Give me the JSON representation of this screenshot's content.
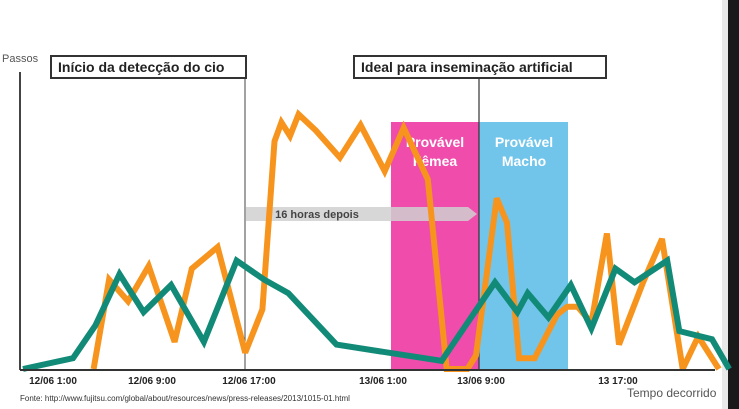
{
  "chart_data": {
    "type": "line",
    "ylabel": "Passos",
    "xlabel": "Tempo decorrido",
    "x_ticks": [
      "12/06 1:00",
      "12/06 9:00",
      "12/06 17:00",
      "13/06 1:00",
      "13/06 9:00",
      "13 17:00"
    ],
    "xlim": [
      0,
      40
    ],
    "ylim": [
      0,
      100
    ],
    "grid": false,
    "legend": "none",
    "series": [
      {
        "color": "#f7941d",
        "x": [
          4.1,
          5.0,
          6.1,
          7.3,
          8.8,
          9.8,
          11.3,
          12.9,
          13.9,
          14.6,
          15.0,
          15.5,
          16.0,
          17.0,
          18.4,
          19.6,
          21.0,
          22.1,
          23.5,
          24.6,
          25.8,
          26.3,
          27.5,
          28.1,
          28.8,
          29.7,
          31.0,
          31.6,
          32.2,
          33.0,
          33.9,
          34.6,
          36.0,
          37.1,
          38.3,
          39.2,
          40.4
        ],
        "y": [
          0,
          33,
          25,
          38,
          10,
          37,
          45,
          6,
          22,
          84,
          91,
          86,
          94,
          88,
          78,
          90,
          73,
          89,
          70,
          0,
          0,
          5,
          63,
          54,
          4,
          4,
          20,
          23,
          23,
          17,
          50,
          9,
          32,
          48,
          0,
          12,
          0
        ]
      },
      {
        "color": "#128a78",
        "x": [
          0,
          2.9,
          4.2,
          5.6,
          7.0,
          8.6,
          10.5,
          12.4,
          14.0,
          15.4,
          18.2,
          24.3,
          27.4,
          28.7,
          29.3,
          30.5,
          31.8,
          33.0,
          34.4,
          35.5,
          37.4,
          38.1,
          40.0,
          41.0
        ],
        "y": [
          0,
          4,
          16,
          35,
          21,
          31,
          10,
          40,
          33,
          28,
          9,
          3,
          32,
          21,
          28,
          19,
          31,
          15,
          37,
          32,
          40,
          14,
          11,
          0
        ]
      }
    ],
    "annotations": {
      "start_label": "Início da detecção do cio",
      "ideal_label": "Ideal para inseminação artificial",
      "female_label_1": "Provável",
      "female_label_2": "Fêmea",
      "male_label_1": "Provável",
      "male_label_2": "Macho",
      "arrow_label": "16 horas depois"
    },
    "colors": {
      "orange": "#f7941d",
      "green": "#128a78",
      "female_band": "#ef4cab",
      "male_band": "#72c5ea"
    }
  },
  "source_text": "Fonte: http://www.fujitsu.com/global/about/resources/news/press-releases/2013/1015-01.html"
}
